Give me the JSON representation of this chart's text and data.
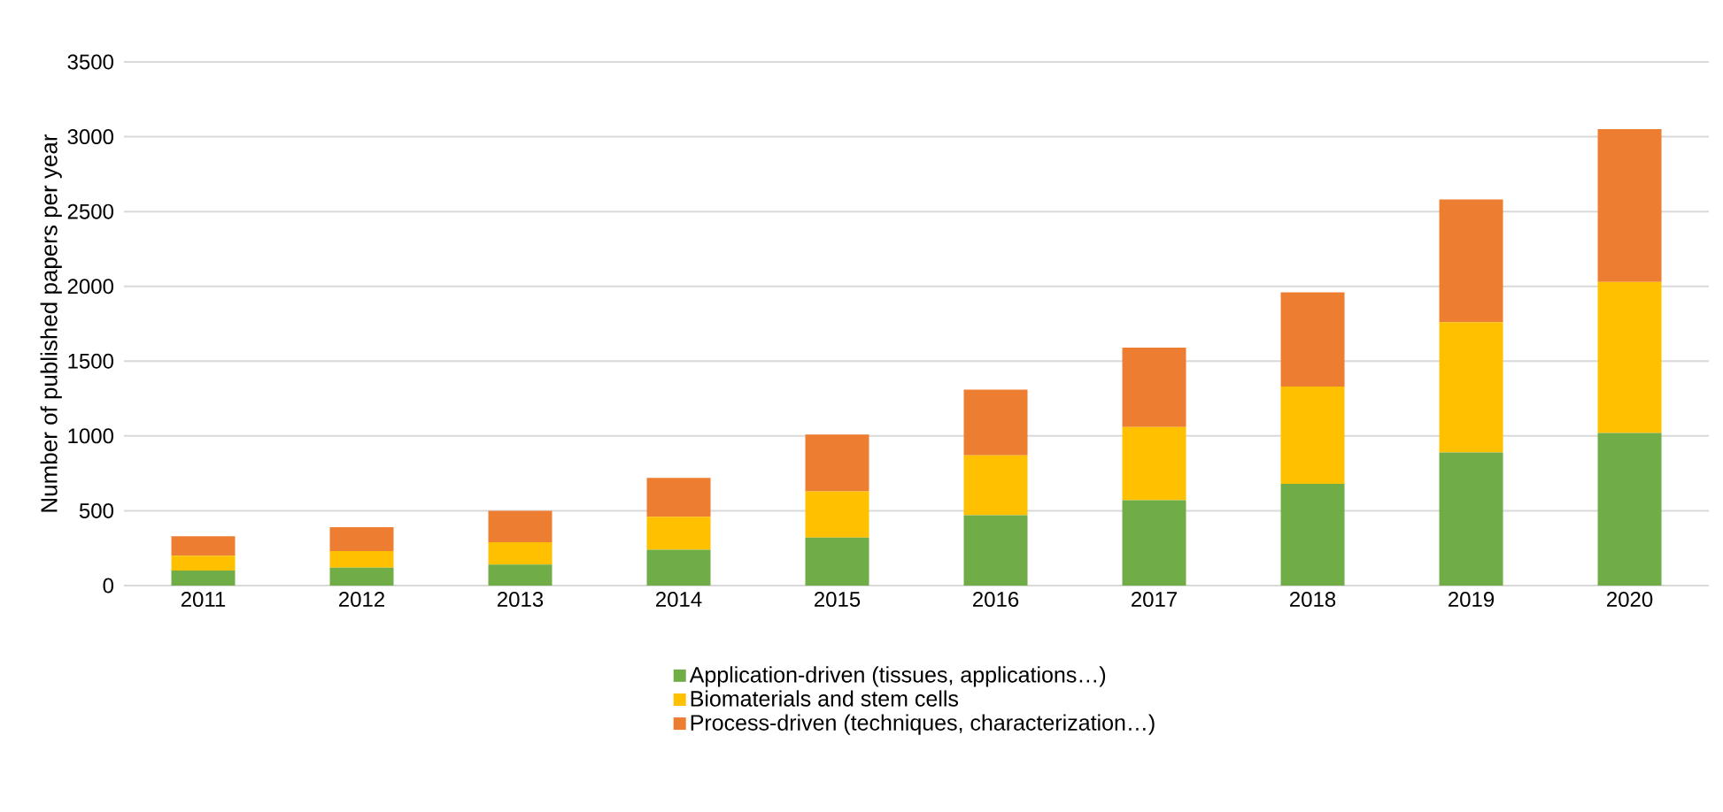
{
  "chart_data": {
    "type": "bar",
    "stacked": true,
    "ylabel": "Number of published papers per year",
    "categories": [
      "2011",
      "2012",
      "2013",
      "2014",
      "2015",
      "2016",
      "2017",
      "2018",
      "2019",
      "2020"
    ],
    "series": [
      {
        "name": "Application-driven (tissues, applications…)",
        "color": "#70ad47",
        "values": [
          100,
          120,
          140,
          240,
          320,
          470,
          570,
          680,
          890,
          1020
        ]
      },
      {
        "name": "Biomaterials and stem cells",
        "color": "#ffc000",
        "values": [
          100,
          110,
          150,
          220,
          310,
          400,
          490,
          650,
          870,
          1010
        ]
      },
      {
        "name": "Process-driven (techniques, characterization…)",
        "color": "#ed7d31",
        "values": [
          130,
          160,
          210,
          260,
          380,
          440,
          530,
          630,
          820,
          1020
        ]
      }
    ],
    "ylim": [
      0,
      3500
    ],
    "yticks": [
      0,
      500,
      1000,
      1500,
      2000,
      2500,
      3000,
      3500
    ],
    "grid": "y",
    "legend": "bottom"
  }
}
